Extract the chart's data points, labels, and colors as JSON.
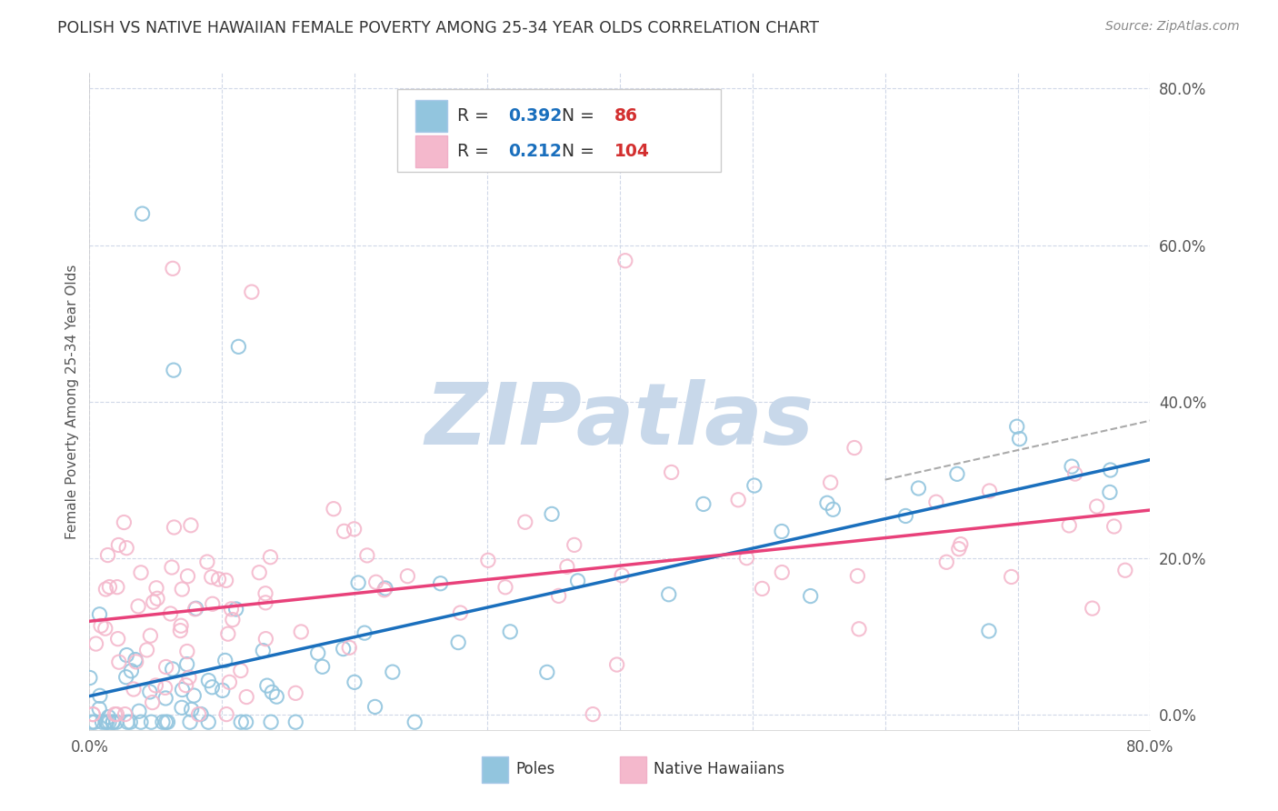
{
  "title": "POLISH VS NATIVE HAWAIIAN FEMALE POVERTY AMONG 25-34 YEAR OLDS CORRELATION CHART",
  "source": "Source: ZipAtlas.com",
  "ylabel": "Female Poverty Among 25-34 Year Olds",
  "xlim": [
    0.0,
    0.8
  ],
  "ylim": [
    -0.02,
    0.82
  ],
  "poles_R": 0.392,
  "poles_N": 86,
  "hawaiians_R": 0.212,
  "hawaiians_N": 104,
  "poles_color": "#92c5de",
  "hawaiians_color": "#f4b8cc",
  "poles_line_color": "#1a6fbd",
  "hawaiians_line_color": "#e8417a",
  "watermark_text": "ZIPatlas",
  "watermark_color": "#c8d8ea",
  "background_color": "#ffffff",
  "grid_color": "#d0d8e8",
  "legend_R_color": "#1a6fbd",
  "legend_N_color": "#d32f2f",
  "ytick_positions": [
    0.0,
    0.2,
    0.4,
    0.6,
    0.8
  ],
  "ytick_labels": [
    "0.0%",
    "20.0%",
    "40.0%",
    "60.0%",
    "80.0%"
  ],
  "xtick_positions": [
    0.0,
    0.1,
    0.2,
    0.3,
    0.4,
    0.5,
    0.6,
    0.7,
    0.8
  ],
  "xtick_labels": [
    "0.0%",
    "",
    "",
    "",
    "",
    "",
    "",
    "",
    "80.0%"
  ]
}
